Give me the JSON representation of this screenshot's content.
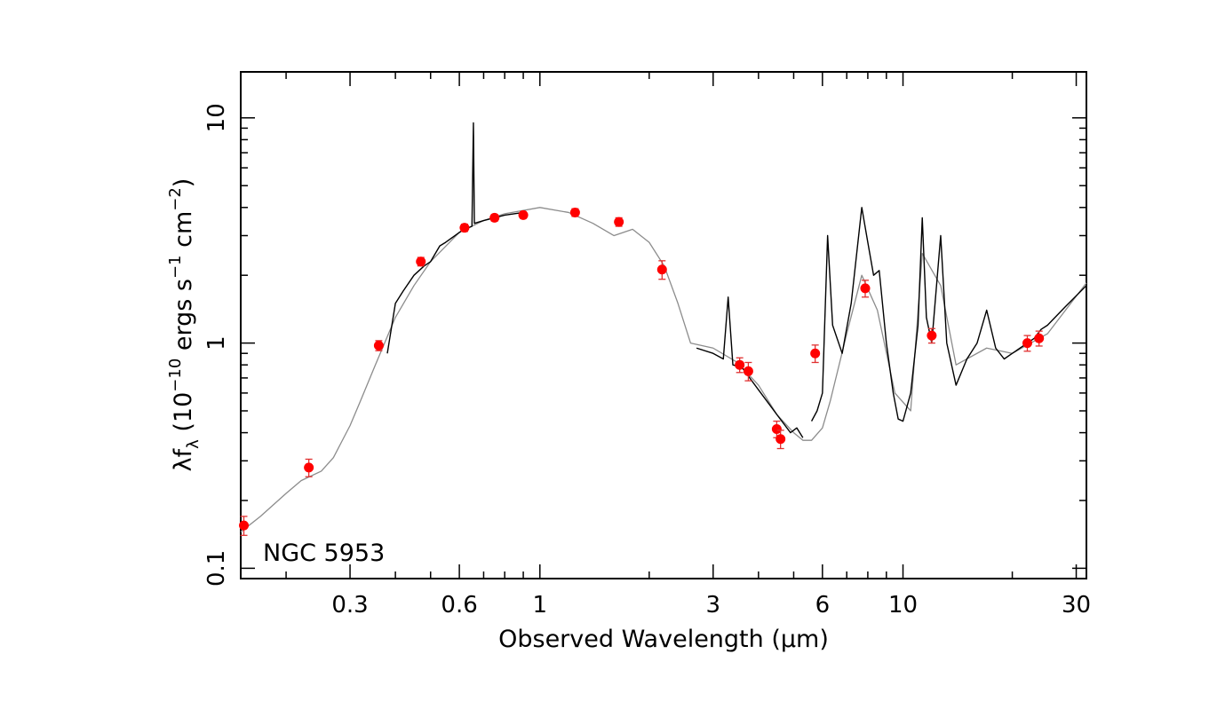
{
  "chart_data": {
    "type": "scatter",
    "object_label": "NGC 5953",
    "xlabel": "Observed Wavelength (μm)",
    "ylabel_parts": {
      "main": "λf",
      "sub": "λ",
      "open": " (10",
      "exp1": "−10",
      "mid1": " ergs s",
      "exp2": "−1",
      "mid2": " cm",
      "exp3": "−2",
      "close": ")"
    },
    "xscale": "log",
    "yscale": "log",
    "xlim": [
      0.15,
      32
    ],
    "ylim": [
      0.09,
      16
    ],
    "grid": false,
    "x_ticks": [
      {
        "value": 0.3,
        "label": "0.3"
      },
      {
        "value": 0.6,
        "label": "0.6"
      },
      {
        "value": 1,
        "label": "1"
      },
      {
        "value": 3,
        "label": "3"
      },
      {
        "value": 6,
        "label": "6"
      },
      {
        "value": 10,
        "label": "10"
      },
      {
        "value": 30,
        "label": "30"
      }
    ],
    "y_ticks": [
      {
        "value": 0.1,
        "label": "0.1"
      },
      {
        "value": 1,
        "label": "1"
      },
      {
        "value": 10,
        "label": "10"
      }
    ],
    "colors": {
      "model": "#8c8c8c",
      "observed": "#000000",
      "points": "#ff0000",
      "errorbars": "#e03030"
    },
    "series": [
      {
        "role": "model",
        "points": [
          [
            0.15,
            0.145
          ],
          [
            0.17,
            0.17
          ],
          [
            0.2,
            0.215
          ],
          [
            0.22,
            0.245
          ],
          [
            0.25,
            0.27
          ],
          [
            0.27,
            0.31
          ],
          [
            0.3,
            0.43
          ],
          [
            0.32,
            0.55
          ],
          [
            0.35,
            0.78
          ],
          [
            0.4,
            1.3
          ],
          [
            0.45,
            1.8
          ],
          [
            0.5,
            2.3
          ],
          [
            0.6,
            3.1
          ],
          [
            0.7,
            3.5
          ],
          [
            0.8,
            3.75
          ],
          [
            1.0,
            4.0
          ],
          [
            1.2,
            3.8
          ],
          [
            1.4,
            3.4
          ],
          [
            1.6,
            3.0
          ],
          [
            1.8,
            3.2
          ],
          [
            2.0,
            2.8
          ],
          [
            2.2,
            2.2
          ],
          [
            2.4,
            1.5
          ],
          [
            2.6,
            1.0
          ],
          [
            3.0,
            0.95
          ],
          [
            3.5,
            0.82
          ],
          [
            4.0,
            0.65
          ],
          [
            4.5,
            0.48
          ],
          [
            5.0,
            0.4
          ],
          [
            5.3,
            0.37
          ],
          [
            5.6,
            0.37
          ],
          [
            6.0,
            0.42
          ],
          [
            6.3,
            0.55
          ],
          [
            7.0,
            1.1
          ],
          [
            7.7,
            2.0
          ],
          [
            8.5,
            1.4
          ],
          [
            9.5,
            0.6
          ],
          [
            10.5,
            0.5
          ],
          [
            11.3,
            2.5
          ],
          [
            12.7,
            1.8
          ],
          [
            14.0,
            0.8
          ],
          [
            17.0,
            0.95
          ],
          [
            20.0,
            0.9
          ],
          [
            25.0,
            1.1
          ],
          [
            32.0,
            1.85
          ]
        ]
      },
      {
        "role": "observed",
        "points": [
          [
            0.38,
            0.9
          ],
          [
            0.4,
            1.5
          ],
          [
            0.42,
            1.7
          ],
          [
            0.45,
            2.0
          ],
          [
            0.48,
            2.2
          ],
          [
            0.5,
            2.3
          ],
          [
            0.53,
            2.7
          ],
          [
            0.55,
            2.8
          ],
          [
            0.6,
            3.1
          ],
          [
            0.62,
            3.2
          ],
          [
            0.65,
            3.3
          ],
          [
            0.656,
            9.5
          ],
          [
            0.66,
            3.4
          ],
          [
            0.7,
            3.5
          ],
          [
            0.8,
            3.7
          ],
          [
            0.9,
            3.8
          ]
        ]
      },
      {
        "role": "observed",
        "points": [
          [
            2.7,
            0.95
          ],
          [
            3.0,
            0.9
          ],
          [
            3.2,
            0.85
          ],
          [
            3.3,
            1.6
          ],
          [
            3.4,
            0.8
          ],
          [
            3.6,
            0.78
          ],
          [
            4.0,
            0.62
          ],
          [
            4.5,
            0.48
          ],
          [
            4.9,
            0.4
          ],
          [
            5.1,
            0.42
          ],
          [
            5.3,
            0.38
          ]
        ]
      },
      {
        "role": "observed",
        "points": [
          [
            5.6,
            0.45
          ],
          [
            5.8,
            0.5
          ],
          [
            6.0,
            0.6
          ],
          [
            6.2,
            3.0
          ],
          [
            6.4,
            1.2
          ],
          [
            6.8,
            0.9
          ],
          [
            7.2,
            1.5
          ],
          [
            7.7,
            4.0
          ],
          [
            8.0,
            2.8
          ],
          [
            8.3,
            2.0
          ],
          [
            8.6,
            2.1
          ],
          [
            9.0,
            1.0
          ],
          [
            9.4,
            0.6
          ],
          [
            9.7,
            0.46
          ],
          [
            10.0,
            0.45
          ],
          [
            10.5,
            0.6
          ],
          [
            11.0,
            1.2
          ],
          [
            11.3,
            3.6
          ],
          [
            11.6,
            1.3
          ],
          [
            12.0,
            1.0
          ],
          [
            12.7,
            3.0
          ],
          [
            13.2,
            1.0
          ],
          [
            14.0,
            0.65
          ],
          [
            15.0,
            0.85
          ],
          [
            16.0,
            1.0
          ],
          [
            17.0,
            1.4
          ],
          [
            18.0,
            0.95
          ],
          [
            19.0,
            0.85
          ],
          [
            20.0,
            0.9
          ],
          [
            22.0,
            1.0
          ],
          [
            23.0,
            1.05
          ],
          [
            24.0,
            1.15
          ],
          [
            25.0,
            1.2
          ],
          [
            28.0,
            1.45
          ],
          [
            32.0,
            1.8
          ]
        ]
      },
      {
        "role": "photometry",
        "points": [
          {
            "x": 0.153,
            "y": 0.155,
            "err": 0.015
          },
          {
            "x": 0.231,
            "y": 0.28,
            "err": 0.025
          },
          {
            "x": 0.36,
            "y": 0.975,
            "err": 0.05
          },
          {
            "x": 0.47,
            "y": 2.3,
            "err": 0.1
          },
          {
            "x": 0.62,
            "y": 3.25,
            "err": 0.12
          },
          {
            "x": 0.75,
            "y": 3.6,
            "err": 0.12
          },
          {
            "x": 0.9,
            "y": 3.7,
            "err": 0.12
          },
          {
            "x": 1.25,
            "y": 3.8,
            "err": 0.15
          },
          {
            "x": 1.65,
            "y": 3.45,
            "err": 0.15
          },
          {
            "x": 2.17,
            "y": 2.12,
            "err": 0.2
          },
          {
            "x": 3.55,
            "y": 0.8,
            "err": 0.06
          },
          {
            "x": 3.75,
            "y": 0.75,
            "err": 0.07
          },
          {
            "x": 4.49,
            "y": 0.415,
            "err": 0.035
          },
          {
            "x": 4.6,
            "y": 0.375,
            "err": 0.035
          },
          {
            "x": 5.73,
            "y": 0.9,
            "err": 0.08
          },
          {
            "x": 7.87,
            "y": 1.75,
            "err": 0.15
          },
          {
            "x": 12.0,
            "y": 1.08,
            "err": 0.08
          },
          {
            "x": 22.0,
            "y": 1.0,
            "err": 0.08
          },
          {
            "x": 23.7,
            "y": 1.05,
            "err": 0.08
          }
        ]
      }
    ]
  }
}
